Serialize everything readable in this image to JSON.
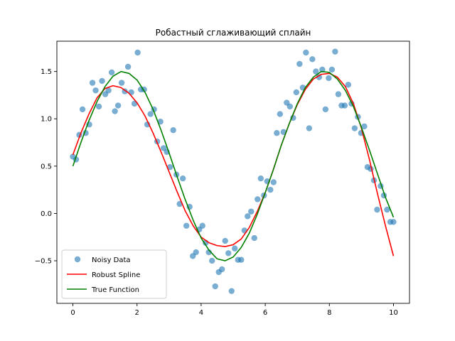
{
  "chart_data": {
    "type": "scatter",
    "title": "Робастный сглаживающий сплайн",
    "xlabel": "",
    "ylabel": "",
    "xlim": [
      -0.5,
      10.5
    ],
    "ylim": [
      -0.95,
      1.82
    ],
    "xticks": [
      0,
      2,
      4,
      6,
      8,
      10
    ],
    "yticks": [
      -0.5,
      0.0,
      0.5,
      1.0,
      1.5
    ],
    "ytick_labels": [
      "−0.5",
      "0.0",
      "0.5",
      "1.0",
      "1.5"
    ],
    "grid": false,
    "legend_position": "lower-left",
    "scatter": {
      "name": "Noisy Data",
      "color": "#1f77b4",
      "x": [
        0.0,
        0.1,
        0.2,
        0.3,
        0.4,
        0.51,
        0.61,
        0.71,
        0.81,
        0.91,
        1.01,
        1.11,
        1.21,
        1.31,
        1.41,
        1.52,
        1.62,
        1.72,
        1.82,
        1.92,
        2.02,
        2.12,
        2.22,
        2.32,
        2.42,
        2.53,
        2.63,
        2.73,
        2.83,
        2.93,
        3.03,
        3.13,
        3.23,
        3.33,
        3.43,
        3.54,
        3.64,
        3.74,
        3.84,
        3.94,
        4.04,
        4.14,
        4.24,
        4.34,
        4.44,
        4.55,
        4.65,
        4.75,
        4.85,
        4.95,
        5.05,
        5.15,
        5.25,
        5.35,
        5.45,
        5.56,
        5.66,
        5.76,
        5.86,
        5.96,
        6.06,
        6.16,
        6.26,
        6.36,
        6.46,
        6.57,
        6.67,
        6.77,
        6.87,
        6.97,
        7.07,
        7.17,
        7.27,
        7.37,
        7.47,
        7.58,
        7.68,
        7.78,
        7.88,
        7.98,
        8.08,
        8.18,
        8.28,
        8.38,
        8.48,
        8.59,
        8.69,
        8.79,
        8.89,
        8.99,
        9.09,
        9.19,
        9.29,
        9.39,
        9.49,
        9.6,
        9.7,
        9.8,
        9.9,
        10.0
      ],
      "y": [
        0.6,
        0.57,
        0.83,
        1.1,
        0.85,
        0.94,
        1.38,
        1.3,
        1.13,
        1.4,
        1.26,
        1.3,
        1.49,
        1.08,
        1.14,
        1.38,
        1.29,
        1.55,
        1.28,
        1.16,
        1.7,
        1.31,
        1.31,
        0.94,
        1.05,
        1.1,
        0.76,
        0.97,
        0.69,
        0.65,
        0.49,
        0.88,
        0.41,
        0.1,
        0.37,
        -0.13,
        0.07,
        -0.45,
        -0.41,
        -0.17,
        -0.13,
        -0.31,
        -0.41,
        -0.5,
        -0.77,
        -0.62,
        -0.59,
        -0.29,
        -0.42,
        -0.82,
        -0.37,
        -0.49,
        -0.49,
        -0.18,
        -0.03,
        0.02,
        -0.26,
        0.15,
        0.37,
        0.19,
        0.34,
        0.25,
        0.33,
        0.85,
        1.05,
        0.86,
        1.17,
        1.13,
        1.01,
        1.28,
        1.58,
        1.33,
        1.7,
        0.9,
        1.63,
        1.5,
        1.44,
        1.52,
        1.1,
        1.43,
        1.52,
        1.71,
        1.26,
        1.14,
        1.14,
        1.36,
        1.16,
        0.9,
        1.02,
        0.85,
        0.92,
        0.49,
        0.47,
        0.35,
        0.04,
        0.29,
        0.19,
        0.04,
        -0.09,
        -0.09
      ]
    },
    "series": [
      {
        "name": "Robust Spline",
        "color": "#ff0000",
        "x": [
          0.0,
          0.25,
          0.5,
          0.75,
          1.0,
          1.25,
          1.5,
          1.75,
          2.0,
          2.25,
          2.5,
          2.75,
          3.0,
          3.25,
          3.5,
          3.75,
          4.0,
          4.25,
          4.5,
          4.75,
          5.0,
          5.25,
          5.5,
          5.75,
          6.0,
          6.25,
          6.5,
          6.75,
          7.0,
          7.25,
          7.5,
          7.75,
          8.0,
          8.25,
          8.5,
          8.75,
          9.0,
          9.25,
          9.5,
          9.75,
          10.0
        ],
        "y": [
          0.62,
          0.85,
          1.05,
          1.22,
          1.32,
          1.35,
          1.33,
          1.27,
          1.17,
          1.03,
          0.85,
          0.65,
          0.44,
          0.23,
          0.03,
          -0.13,
          -0.25,
          -0.31,
          -0.34,
          -0.35,
          -0.33,
          -0.27,
          -0.15,
          0.02,
          0.22,
          0.46,
          0.72,
          0.95,
          1.15,
          1.31,
          1.42,
          1.47,
          1.48,
          1.44,
          1.34,
          1.16,
          0.9,
          0.57,
          0.21,
          -0.13,
          -0.45
        ]
      },
      {
        "name": "True Function",
        "color": "#008000",
        "x": [
          0.0,
          0.25,
          0.5,
          0.75,
          1.0,
          1.25,
          1.5,
          1.75,
          2.0,
          2.25,
          2.5,
          2.75,
          3.0,
          3.25,
          3.5,
          3.75,
          4.0,
          4.25,
          4.5,
          4.75,
          5.0,
          5.25,
          5.5,
          5.75,
          6.0,
          6.25,
          6.5,
          6.75,
          7.0,
          7.25,
          7.5,
          7.75,
          8.0,
          8.25,
          8.5,
          8.75,
          9.0,
          9.25,
          9.5,
          9.75,
          10.0
        ],
        "y": [
          0.5,
          0.75,
          0.98,
          1.18,
          1.34,
          1.45,
          1.5,
          1.48,
          1.41,
          1.28,
          1.1,
          0.88,
          0.64,
          0.39,
          0.15,
          -0.07,
          -0.26,
          -0.39,
          -0.48,
          -0.5,
          -0.46,
          -0.36,
          -0.21,
          -0.01,
          0.22,
          0.46,
          0.72,
          0.95,
          1.16,
          1.33,
          1.44,
          1.5,
          1.49,
          1.42,
          1.3,
          1.13,
          0.91,
          0.67,
          0.42,
          0.17,
          -0.04
        ]
      }
    ]
  }
}
